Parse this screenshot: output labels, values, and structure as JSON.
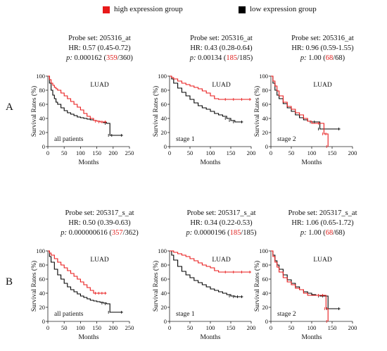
{
  "legend": {
    "high": {
      "label": "high expression group",
      "color": "#e8191a"
    },
    "low": {
      "label": "low expression group",
      "color": "#000000"
    }
  },
  "row_labels": [
    "A",
    "B"
  ],
  "chart_data": [
    {
      "type": "line",
      "row": 0,
      "col": 0,
      "probe": "Probe set: 205316_at",
      "hr": "HR: 0.57 (0.45-0.72)",
      "p_prefix": "p:",
      "p_value": " 0.000162 (",
      "n_high": "359",
      "n_low": "/360)",
      "cohort": "LUAD",
      "subgroup": "all patients",
      "xlabel": "Months",
      "ylabel": "Survival Rates (%)",
      "xlim": [
        0,
        250
      ],
      "ylim": [
        0,
        100
      ],
      "xticks": [
        0,
        50,
        100,
        150,
        200,
        250
      ],
      "yticks": [
        0,
        20,
        40,
        60,
        80,
        100
      ],
      "series": [
        {
          "key": "high",
          "color": "#e8191a",
          "x": [
            0,
            5,
            10,
            15,
            20,
            25,
            30,
            40,
            50,
            60,
            70,
            80,
            90,
            100,
            110,
            120,
            130,
            140,
            150,
            160,
            170,
            180
          ],
          "y": [
            100,
            95,
            90,
            87,
            84,
            82,
            80,
            76,
            72,
            68,
            64,
            60,
            56,
            52,
            47,
            43,
            40,
            37,
            36,
            35,
            35,
            35
          ]
        },
        {
          "key": "low",
          "color": "#000000",
          "x": [
            0,
            5,
            10,
            15,
            20,
            25,
            30,
            40,
            50,
            60,
            70,
            80,
            90,
            100,
            110,
            120,
            130,
            140,
            150,
            160,
            170,
            180,
            190,
            200,
            230
          ],
          "y": [
            100,
            90,
            80,
            73,
            68,
            63,
            60,
            55,
            51,
            48,
            46,
            44,
            42,
            41,
            40,
            39,
            38,
            37,
            36,
            35,
            34,
            33,
            16,
            16,
            16
          ]
        }
      ]
    },
    {
      "type": "line",
      "row": 0,
      "col": 1,
      "probe": "Probe set: 205316_at",
      "hr": "HR: 0.43 (0.28-0.64)",
      "p_prefix": "p:",
      "p_value": " 0.00134 (",
      "n_high": "185",
      "n_low": "/185)",
      "cohort": "LUAD",
      "subgroup": "stage 1",
      "xlabel": "Months",
      "ylabel": "Survival Rates (%)",
      "xlim": [
        0,
        200
      ],
      "ylim": [
        0,
        100
      ],
      "xticks": [
        0,
        50,
        100,
        150,
        200
      ],
      "yticks": [
        0,
        20,
        40,
        60,
        80,
        100
      ],
      "series": [
        {
          "key": "high",
          "color": "#e8191a",
          "x": [
            0,
            5,
            10,
            20,
            30,
            40,
            50,
            60,
            70,
            80,
            90,
            100,
            110,
            120,
            140,
            160,
            180,
            200
          ],
          "y": [
            100,
            98,
            96,
            93,
            90,
            88,
            86,
            84,
            82,
            79,
            76,
            72,
            68,
            67,
            67,
            67,
            67,
            67
          ]
        },
        {
          "key": "low",
          "color": "#000000",
          "x": [
            0,
            5,
            10,
            20,
            30,
            40,
            50,
            60,
            70,
            80,
            90,
            100,
            110,
            120,
            130,
            140,
            150,
            160,
            180
          ],
          "y": [
            100,
            96,
            90,
            83,
            77,
            72,
            67,
            62,
            58,
            55,
            53,
            50,
            47,
            45,
            43,
            40,
            37,
            35,
            35
          ]
        }
      ]
    },
    {
      "type": "line",
      "row": 0,
      "col": 2,
      "probe": "Probe set: 205316_at",
      "hr": "HR: 0.96 (0.59-1.55)",
      "p_prefix": "p:",
      "p_value": " 1.00 (",
      "n_high": "68",
      "n_low": "/68)",
      "cohort": "LUAD",
      "subgroup": "stage 2",
      "xlabel": "Months",
      "ylabel": "Survival Rates (%)",
      "xlim": [
        0,
        200
      ],
      "ylim": [
        0,
        100
      ],
      "xticks": [
        0,
        50,
        100,
        150,
        200
      ],
      "yticks": [
        0,
        20,
        40,
        60,
        80,
        100
      ],
      "series": [
        {
          "key": "high",
          "color": "#e8191a",
          "x": [
            0,
            5,
            10,
            15,
            20,
            30,
            40,
            50,
            60,
            70,
            80,
            90,
            100,
            110,
            120,
            130,
            138,
            140
          ],
          "y": [
            100,
            93,
            86,
            79,
            72,
            63,
            57,
            53,
            48,
            45,
            40,
            36,
            33,
            33,
            33,
            18,
            18,
            0
          ]
        },
        {
          "key": "low",
          "color": "#000000",
          "x": [
            0,
            5,
            10,
            15,
            20,
            30,
            40,
            50,
            60,
            70,
            80,
            90,
            100,
            110,
            120,
            170
          ],
          "y": [
            100,
            90,
            80,
            73,
            68,
            61,
            55,
            50,
            45,
            41,
            38,
            36,
            35,
            35,
            25,
            25
          ]
        }
      ]
    },
    {
      "type": "line",
      "row": 1,
      "col": 0,
      "probe": "Probe set: 205317_s_at",
      "hr": "HR: 0.50 (0.39-0.63)",
      "p_prefix": "p:",
      "p_value": " 0.000000616 (",
      "n_high": "357",
      "n_low": "/362)",
      "cohort": "LUAD",
      "subgroup": "all patients",
      "xlabel": "Months",
      "ylabel": "Survival Rates (%)",
      "xlim": [
        0,
        250
      ],
      "ylim": [
        0,
        100
      ],
      "xticks": [
        0,
        50,
        100,
        150,
        200,
        250
      ],
      "yticks": [
        0,
        20,
        40,
        60,
        80,
        100
      ],
      "series": [
        {
          "key": "high",
          "color": "#e8191a",
          "x": [
            0,
            5,
            10,
            20,
            30,
            40,
            50,
            60,
            70,
            80,
            90,
            100,
            110,
            120,
            130,
            140,
            150,
            160,
            170,
            180
          ],
          "y": [
            100,
            97,
            94,
            89,
            84,
            80,
            76,
            72,
            68,
            64,
            60,
            56,
            52,
            48,
            44,
            40,
            40,
            40,
            40,
            40
          ]
        },
        {
          "key": "low",
          "color": "#000000",
          "x": [
            0,
            5,
            10,
            20,
            30,
            40,
            50,
            60,
            70,
            80,
            90,
            100,
            110,
            120,
            130,
            140,
            150,
            160,
            170,
            180,
            190,
            230
          ],
          "y": [
            100,
            92,
            84,
            74,
            66,
            60,
            54,
            49,
            45,
            42,
            39,
            36,
            34,
            32,
            30,
            29,
            28,
            27,
            26,
            25,
            13,
            13
          ]
        }
      ]
    },
    {
      "type": "line",
      "row": 1,
      "col": 1,
      "probe": "Probe set: 205317_s_at",
      "hr": "HR: 0.34 (0.22-0.53)",
      "p_prefix": "p:",
      "p_value": " 0.0000196 (",
      "n_high": "185",
      "n_low": "/185)",
      "cohort": "LUAD",
      "subgroup": "stage 1",
      "xlabel": "Months",
      "ylabel": "Survival Rates (%)",
      "xlim": [
        0,
        200
      ],
      "ylim": [
        0,
        100
      ],
      "xticks": [
        0,
        50,
        100,
        150,
        200
      ],
      "yticks": [
        0,
        20,
        40,
        60,
        80,
        100
      ],
      "series": [
        {
          "key": "high",
          "color": "#e8191a",
          "x": [
            0,
            10,
            20,
            30,
            40,
            50,
            60,
            70,
            80,
            90,
            100,
            110,
            120,
            140,
            160,
            180,
            200
          ],
          "y": [
            100,
            98,
            96,
            94,
            92,
            89,
            86,
            83,
            80,
            78,
            76,
            72,
            70,
            70,
            70,
            70,
            70
          ]
        },
        {
          "key": "low",
          "color": "#000000",
          "x": [
            0,
            5,
            10,
            20,
            30,
            40,
            50,
            60,
            70,
            80,
            90,
            100,
            110,
            120,
            130,
            140,
            150,
            160,
            170,
            180
          ],
          "y": [
            100,
            94,
            87,
            78,
            71,
            66,
            62,
            58,
            55,
            52,
            49,
            46,
            44,
            42,
            40,
            38,
            36,
            35,
            35,
            35
          ]
        }
      ]
    },
    {
      "type": "line",
      "row": 1,
      "col": 2,
      "probe": "Probe set: 205317_s_at",
      "hr": "HR: 1.06 (0.65-1.72)",
      "p_prefix": "p:",
      "p_value": " 1.00 (",
      "n_high": "68",
      "n_low": "/68)",
      "cohort": "LUAD",
      "subgroup": "stage 2",
      "xlabel": "Months",
      "ylabel": "Survival Rates (%)",
      "xlim": [
        0,
        200
      ],
      "ylim": [
        0,
        100
      ],
      "xticks": [
        0,
        50,
        100,
        150,
        200
      ],
      "yticks": [
        0,
        20,
        40,
        60,
        80,
        100
      ],
      "series": [
        {
          "key": "high",
          "color": "#e8191a",
          "x": [
            0,
            5,
            10,
            15,
            20,
            30,
            40,
            50,
            60,
            70,
            80,
            90,
            100,
            110,
            120,
            130,
            135,
            140
          ],
          "y": [
            100,
            92,
            84,
            77,
            70,
            62,
            56,
            52,
            47,
            45,
            40,
            37,
            37,
            37,
            37,
            37,
            18,
            0
          ]
        },
        {
          "key": "low",
          "color": "#000000",
          "x": [
            0,
            5,
            10,
            15,
            20,
            30,
            40,
            50,
            60,
            70,
            80,
            90,
            100,
            110,
            120,
            130,
            140,
            170
          ],
          "y": [
            100,
            94,
            86,
            80,
            74,
            66,
            59,
            54,
            49,
            45,
            42,
            40,
            38,
            37,
            36,
            36,
            18,
            18
          ]
        }
      ]
    }
  ]
}
